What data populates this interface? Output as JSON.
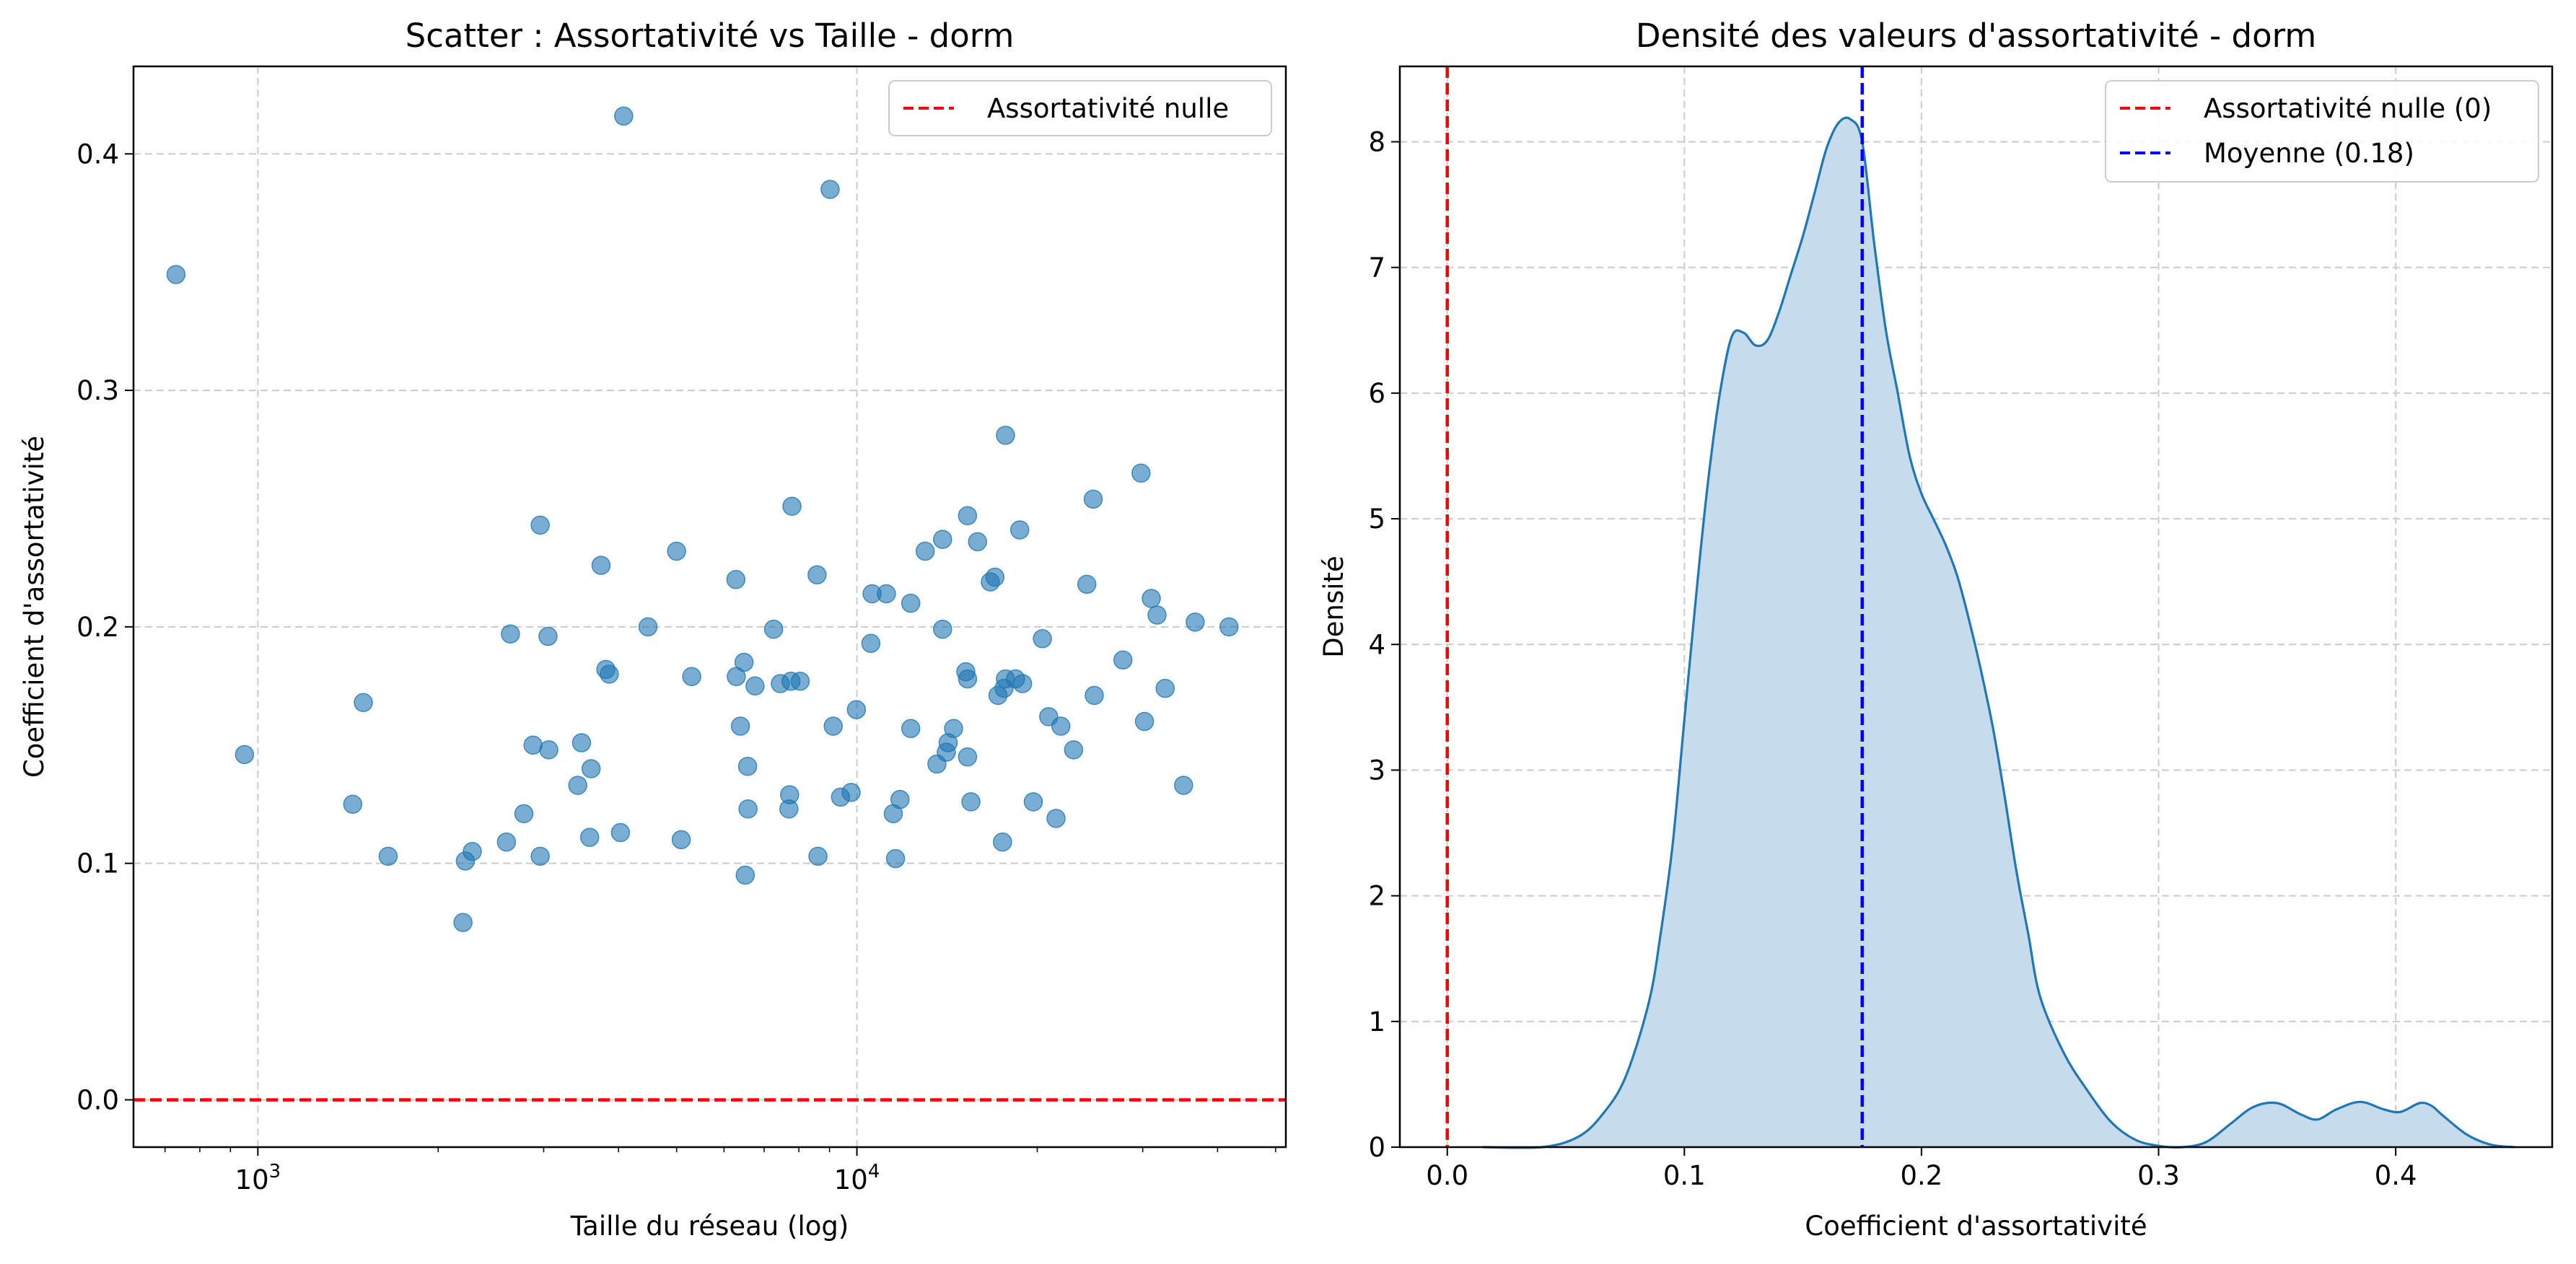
{
  "chart_data": [
    {
      "type": "scatter",
      "title": "Scatter : Assortativité vs Taille - dorm",
      "xlabel": "Taille du réseau (log)",
      "ylabel": "Coefficient d'assortativité",
      "xscale": "log",
      "xlim": [
        620,
        52000
      ],
      "ylim": [
        -0.02,
        0.437
      ],
      "xticks": [
        {
          "value": 1000,
          "base": "10",
          "exp": "3"
        },
        {
          "value": 10000,
          "base": "10",
          "exp": "4"
        }
      ],
      "yticks": [
        {
          "value": 0.0,
          "label": "0.0"
        },
        {
          "value": 0.1,
          "label": "0.1"
        },
        {
          "value": 0.2,
          "label": "0.2"
        },
        {
          "value": 0.3,
          "label": "0.3"
        },
        {
          "value": 0.4,
          "label": "0.4"
        }
      ],
      "grid": true,
      "legend": {
        "position": "top-right",
        "entries": [
          {
            "label": "Assortativité nulle",
            "color": "#ff0000",
            "style": "dashed"
          }
        ]
      },
      "hlines": [
        {
          "y": 0.0,
          "color": "#ff0000",
          "style": "dashed"
        }
      ],
      "marker_color": "#1f77b4",
      "points": [
        [
          730,
          0.349
        ],
        [
          950,
          0.146
        ],
        [
          1440,
          0.125
        ],
        [
          1500,
          0.168
        ],
        [
          1650,
          0.103
        ],
        [
          2200,
          0.075
        ],
        [
          2220,
          0.101
        ],
        [
          2280,
          0.105
        ],
        [
          2600,
          0.109
        ],
        [
          2640,
          0.197
        ],
        [
          2780,
          0.121
        ],
        [
          2880,
          0.15
        ],
        [
          2960,
          0.103
        ],
        [
          2960,
          0.243
        ],
        [
          3050,
          0.196
        ],
        [
          3060,
          0.148
        ],
        [
          3420,
          0.133
        ],
        [
          3470,
          0.151
        ],
        [
          3580,
          0.111
        ],
        [
          3600,
          0.14
        ],
        [
          3740,
          0.226
        ],
        [
          3810,
          0.182
        ],
        [
          3860,
          0.18
        ],
        [
          4030,
          0.113
        ],
        [
          4080,
          0.416
        ],
        [
          4480,
          0.2
        ],
        [
          5000,
          0.232
        ],
        [
          5090,
          0.11
        ],
        [
          5300,
          0.179
        ],
        [
          6280,
          0.22
        ],
        [
          6290,
          0.179
        ],
        [
          6390,
          0.158
        ],
        [
          6480,
          0.185
        ],
        [
          6510,
          0.095
        ],
        [
          6570,
          0.141
        ],
        [
          6580,
          0.123
        ],
        [
          6760,
          0.175
        ],
        [
          7260,
          0.199
        ],
        [
          7450,
          0.176
        ],
        [
          7700,
          0.123
        ],
        [
          7720,
          0.129
        ],
        [
          7760,
          0.177
        ],
        [
          7790,
          0.251
        ],
        [
          8040,
          0.177
        ],
        [
          8580,
          0.222
        ],
        [
          8610,
          0.103
        ],
        [
          9020,
          0.385
        ],
        [
          9130,
          0.158
        ],
        [
          9390,
          0.128
        ],
        [
          9780,
          0.13
        ],
        [
          9980,
          0.165
        ],
        [
          10550,
          0.193
        ],
        [
          10600,
          0.214
        ],
        [
          11200,
          0.214
        ],
        [
          11500,
          0.121
        ],
        [
          11600,
          0.102
        ],
        [
          11800,
          0.127
        ],
        [
          12300,
          0.157
        ],
        [
          12300,
          0.21
        ],
        [
          13000,
          0.232
        ],
        [
          13600,
          0.142
        ],
        [
          13900,
          0.199
        ],
        [
          13900,
          0.237
        ],
        [
          14100,
          0.147
        ],
        [
          14200,
          0.151
        ],
        [
          14500,
          0.157
        ],
        [
          15200,
          0.181
        ],
        [
          15300,
          0.178
        ],
        [
          15300,
          0.145
        ],
        [
          15300,
          0.247
        ],
        [
          15500,
          0.126
        ],
        [
          15900,
          0.236
        ],
        [
          16700,
          0.219
        ],
        [
          17000,
          0.221
        ],
        [
          17200,
          0.171
        ],
        [
          17500,
          0.109
        ],
        [
          17600,
          0.174
        ],
        [
          17700,
          0.178
        ],
        [
          17700,
          0.281
        ],
        [
          18400,
          0.178
        ],
        [
          18700,
          0.241
        ],
        [
          18900,
          0.176
        ],
        [
          19700,
          0.126
        ],
        [
          20400,
          0.195
        ],
        [
          20900,
          0.162
        ],
        [
          21500,
          0.119
        ],
        [
          21900,
          0.158
        ],
        [
          23000,
          0.148
        ],
        [
          24200,
          0.218
        ],
        [
          24800,
          0.254
        ],
        [
          24900,
          0.171
        ],
        [
          27800,
          0.186
        ],
        [
          29800,
          0.265
        ],
        [
          30200,
          0.16
        ],
        [
          31000,
          0.212
        ],
        [
          31700,
          0.205
        ],
        [
          32700,
          0.174
        ],
        [
          35100,
          0.133
        ],
        [
          36700,
          0.202
        ],
        [
          41800,
          0.2
        ]
      ]
    },
    {
      "type": "area",
      "title": "Densité des valeurs d'assortativité - dorm",
      "xlabel": "Coefficient d'assortativité",
      "ylabel": "Densité",
      "xlim": [
        -0.02,
        0.466
      ],
      "ylim": [
        0,
        8.6
      ],
      "xticks": [
        {
          "value": 0.0,
          "label": "0.0"
        },
        {
          "value": 0.1,
          "label": "0.1"
        },
        {
          "value": 0.2,
          "label": "0.2"
        },
        {
          "value": 0.3,
          "label": "0.3"
        },
        {
          "value": 0.4,
          "label": "0.4"
        }
      ],
      "yticks": [
        {
          "value": 0,
          "label": "0"
        },
        {
          "value": 1,
          "label": "1"
        },
        {
          "value": 2,
          "label": "2"
        },
        {
          "value": 3,
          "label": "3"
        },
        {
          "value": 4,
          "label": "4"
        },
        {
          "value": 5,
          "label": "5"
        },
        {
          "value": 6,
          "label": "6"
        },
        {
          "value": 7,
          "label": "7"
        },
        {
          "value": 8,
          "label": "8"
        }
      ],
      "grid": true,
      "legend": {
        "position": "top-right",
        "entries": [
          {
            "label": "Assortativité nulle (0)",
            "color": "#ff0000",
            "style": "dashed"
          },
          {
            "label": "Moyenne (0.18)",
            "color": "#0000ff",
            "style": "dashed"
          }
        ]
      },
      "vlines": [
        {
          "x": 0.0,
          "color": "#ff0000",
          "style": "dashed"
        },
        {
          "x": 0.175,
          "color": "#0000ff",
          "style": "dashed"
        }
      ],
      "line_color": "#1f77b4",
      "fill_color": "#c6dbec",
      "x": [
        0.015,
        0.04,
        0.055,
        0.065,
        0.075,
        0.085,
        0.09,
        0.095,
        0.1,
        0.105,
        0.11,
        0.115,
        0.12,
        0.125,
        0.13,
        0.135,
        0.14,
        0.145,
        0.15,
        0.155,
        0.16,
        0.165,
        0.17,
        0.175,
        0.18,
        0.185,
        0.19,
        0.195,
        0.2,
        0.205,
        0.21,
        0.215,
        0.22,
        0.225,
        0.23,
        0.235,
        0.24,
        0.245,
        0.25,
        0.26,
        0.27,
        0.28,
        0.29,
        0.3,
        0.31,
        0.32,
        0.33,
        0.34,
        0.35,
        0.36,
        0.367,
        0.375,
        0.385,
        0.395,
        0.402,
        0.41,
        0.415,
        0.42,
        0.43,
        0.44,
        0.45
      ],
      "y": [
        0.0,
        0.0,
        0.08,
        0.25,
        0.55,
        1.15,
        1.7,
        2.4,
        3.4,
        4.4,
        5.3,
        6.0,
        6.45,
        6.48,
        6.38,
        6.42,
        6.65,
        6.95,
        7.25,
        7.6,
        7.95,
        8.15,
        8.18,
        8.0,
        7.2,
        6.5,
        6.0,
        5.5,
        5.2,
        5.0,
        4.8,
        4.55,
        4.2,
        3.8,
        3.35,
        2.8,
        2.2,
        1.7,
        1.2,
        0.75,
        0.45,
        0.2,
        0.06,
        0.01,
        0.0,
        0.04,
        0.18,
        0.32,
        0.35,
        0.26,
        0.22,
        0.3,
        0.36,
        0.3,
        0.28,
        0.35,
        0.33,
        0.25,
        0.1,
        0.02,
        0.0
      ]
    }
  ]
}
